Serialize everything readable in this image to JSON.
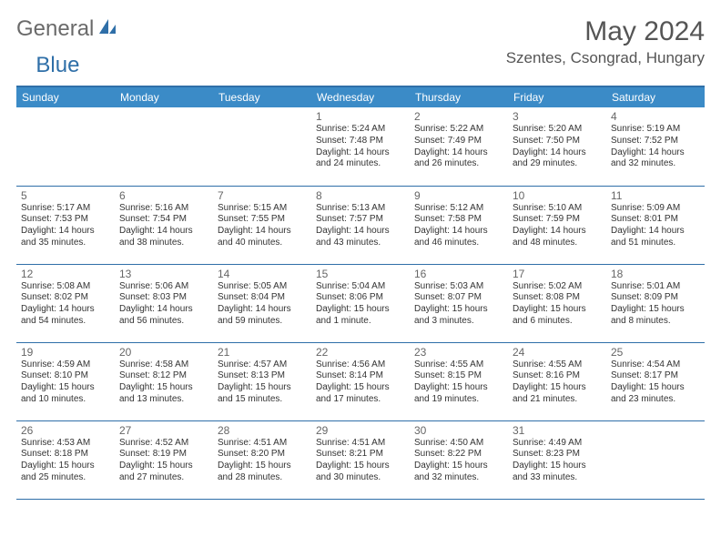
{
  "logo": {
    "part1": "General",
    "part2": "Blue"
  },
  "title": "May 2024",
  "location": "Szentes, Csongrad, Hungary",
  "colors": {
    "header_bg": "#3b8bc7",
    "border": "#2f6fa8",
    "text": "#333333",
    "muted": "#666666"
  },
  "weekdays": [
    "Sunday",
    "Monday",
    "Tuesday",
    "Wednesday",
    "Thursday",
    "Friday",
    "Saturday"
  ],
  "weeks": [
    [
      null,
      null,
      null,
      {
        "n": "1",
        "sr": "5:24 AM",
        "ss": "7:48 PM",
        "dl": "14 hours and 24 minutes."
      },
      {
        "n": "2",
        "sr": "5:22 AM",
        "ss": "7:49 PM",
        "dl": "14 hours and 26 minutes."
      },
      {
        "n": "3",
        "sr": "5:20 AM",
        "ss": "7:50 PM",
        "dl": "14 hours and 29 minutes."
      },
      {
        "n": "4",
        "sr": "5:19 AM",
        "ss": "7:52 PM",
        "dl": "14 hours and 32 minutes."
      }
    ],
    [
      {
        "n": "5",
        "sr": "5:17 AM",
        "ss": "7:53 PM",
        "dl": "14 hours and 35 minutes."
      },
      {
        "n": "6",
        "sr": "5:16 AM",
        "ss": "7:54 PM",
        "dl": "14 hours and 38 minutes."
      },
      {
        "n": "7",
        "sr": "5:15 AM",
        "ss": "7:55 PM",
        "dl": "14 hours and 40 minutes."
      },
      {
        "n": "8",
        "sr": "5:13 AM",
        "ss": "7:57 PM",
        "dl": "14 hours and 43 minutes."
      },
      {
        "n": "9",
        "sr": "5:12 AM",
        "ss": "7:58 PM",
        "dl": "14 hours and 46 minutes."
      },
      {
        "n": "10",
        "sr": "5:10 AM",
        "ss": "7:59 PM",
        "dl": "14 hours and 48 minutes."
      },
      {
        "n": "11",
        "sr": "5:09 AM",
        "ss": "8:01 PM",
        "dl": "14 hours and 51 minutes."
      }
    ],
    [
      {
        "n": "12",
        "sr": "5:08 AM",
        "ss": "8:02 PM",
        "dl": "14 hours and 54 minutes."
      },
      {
        "n": "13",
        "sr": "5:06 AM",
        "ss": "8:03 PM",
        "dl": "14 hours and 56 minutes."
      },
      {
        "n": "14",
        "sr": "5:05 AM",
        "ss": "8:04 PM",
        "dl": "14 hours and 59 minutes."
      },
      {
        "n": "15",
        "sr": "5:04 AM",
        "ss": "8:06 PM",
        "dl": "15 hours and 1 minute."
      },
      {
        "n": "16",
        "sr": "5:03 AM",
        "ss": "8:07 PM",
        "dl": "15 hours and 3 minutes."
      },
      {
        "n": "17",
        "sr": "5:02 AM",
        "ss": "8:08 PM",
        "dl": "15 hours and 6 minutes."
      },
      {
        "n": "18",
        "sr": "5:01 AM",
        "ss": "8:09 PM",
        "dl": "15 hours and 8 minutes."
      }
    ],
    [
      {
        "n": "19",
        "sr": "4:59 AM",
        "ss": "8:10 PM",
        "dl": "15 hours and 10 minutes."
      },
      {
        "n": "20",
        "sr": "4:58 AM",
        "ss": "8:12 PM",
        "dl": "15 hours and 13 minutes."
      },
      {
        "n": "21",
        "sr": "4:57 AM",
        "ss": "8:13 PM",
        "dl": "15 hours and 15 minutes."
      },
      {
        "n": "22",
        "sr": "4:56 AM",
        "ss": "8:14 PM",
        "dl": "15 hours and 17 minutes."
      },
      {
        "n": "23",
        "sr": "4:55 AM",
        "ss": "8:15 PM",
        "dl": "15 hours and 19 minutes."
      },
      {
        "n": "24",
        "sr": "4:55 AM",
        "ss": "8:16 PM",
        "dl": "15 hours and 21 minutes."
      },
      {
        "n": "25",
        "sr": "4:54 AM",
        "ss": "8:17 PM",
        "dl": "15 hours and 23 minutes."
      }
    ],
    [
      {
        "n": "26",
        "sr": "4:53 AM",
        "ss": "8:18 PM",
        "dl": "15 hours and 25 minutes."
      },
      {
        "n": "27",
        "sr": "4:52 AM",
        "ss": "8:19 PM",
        "dl": "15 hours and 27 minutes."
      },
      {
        "n": "28",
        "sr": "4:51 AM",
        "ss": "8:20 PM",
        "dl": "15 hours and 28 minutes."
      },
      {
        "n": "29",
        "sr": "4:51 AM",
        "ss": "8:21 PM",
        "dl": "15 hours and 30 minutes."
      },
      {
        "n": "30",
        "sr": "4:50 AM",
        "ss": "8:22 PM",
        "dl": "15 hours and 32 minutes."
      },
      {
        "n": "31",
        "sr": "4:49 AM",
        "ss": "8:23 PM",
        "dl": "15 hours and 33 minutes."
      },
      null
    ]
  ]
}
